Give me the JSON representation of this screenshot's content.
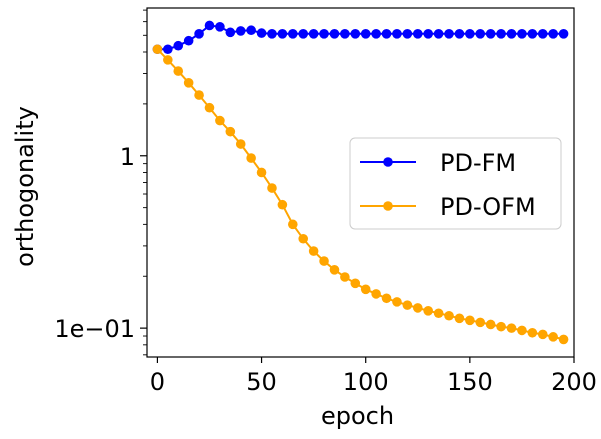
{
  "chart_data": {
    "type": "line",
    "title": "",
    "xlabel": "epoch",
    "ylabel": "orthogonality",
    "yscale": "log",
    "xlim": [
      -5,
      200
    ],
    "ylim": [
      0.068,
      7.2
    ],
    "x_ticks": [
      0,
      50,
      100,
      150,
      200
    ],
    "x_tick_labels": [
      "0",
      "50",
      "100",
      "150",
      "200"
    ],
    "y_ticks": [
      0.1,
      1
    ],
    "y_tick_labels": [
      "1e−01",
      "1"
    ],
    "legend_position": "center-right",
    "series": [
      {
        "name": "PD-FM",
        "color": "#0000ff",
        "x": [
          0,
          5,
          10,
          15,
          20,
          25,
          30,
          35,
          40,
          45,
          50,
          55,
          60,
          65,
          70,
          75,
          80,
          85,
          90,
          95,
          100,
          105,
          110,
          115,
          120,
          125,
          130,
          135,
          140,
          145,
          150,
          155,
          160,
          165,
          170,
          175,
          180,
          185,
          190,
          195
        ],
        "values": [
          4.15,
          4.15,
          4.35,
          4.65,
          5.1,
          5.7,
          5.6,
          5.2,
          5.3,
          5.35,
          5.15,
          5.1,
          5.1,
          5.1,
          5.1,
          5.1,
          5.1,
          5.1,
          5.1,
          5.1,
          5.1,
          5.1,
          5.1,
          5.1,
          5.1,
          5.1,
          5.1,
          5.1,
          5.1,
          5.1,
          5.1,
          5.1,
          5.1,
          5.1,
          5.1,
          5.1,
          5.1,
          5.1,
          5.1,
          5.1
        ]
      },
      {
        "name": "PD-OFM",
        "color": "#ffa500",
        "x": [
          0,
          5,
          10,
          15,
          20,
          25,
          30,
          35,
          40,
          45,
          50,
          55,
          60,
          65,
          70,
          75,
          80,
          85,
          90,
          95,
          100,
          105,
          110,
          115,
          120,
          125,
          130,
          135,
          140,
          145,
          150,
          155,
          160,
          165,
          170,
          175,
          180,
          185,
          190,
          195
        ],
        "values": [
          4.15,
          3.6,
          3.1,
          2.65,
          2.25,
          1.9,
          1.6,
          1.38,
          1.17,
          0.97,
          0.8,
          0.65,
          0.52,
          0.4,
          0.33,
          0.28,
          0.245,
          0.218,
          0.198,
          0.182,
          0.168,
          0.158,
          0.149,
          0.142,
          0.136,
          0.131,
          0.126,
          0.122,
          0.118,
          0.114,
          0.111,
          0.108,
          0.105,
          0.102,
          0.1,
          0.097,
          0.094,
          0.092,
          0.089,
          0.086
        ]
      }
    ]
  }
}
